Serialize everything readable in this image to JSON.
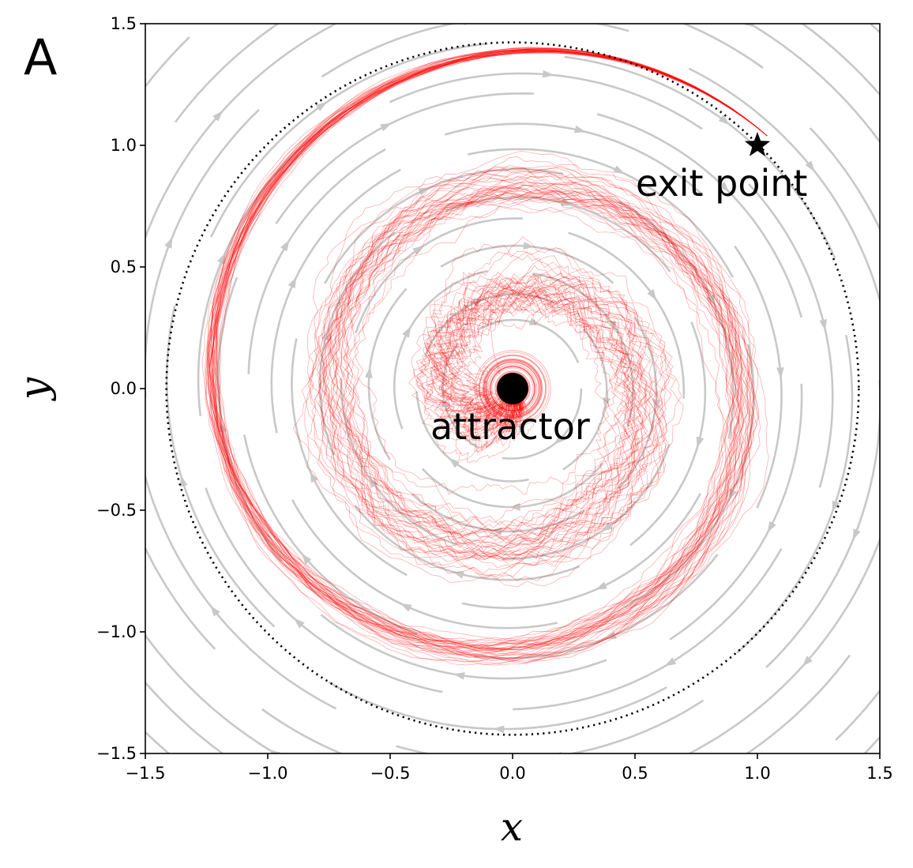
{
  "chart_data": {
    "type": "scatter",
    "panel_label": "A",
    "xlabel": "x",
    "ylabel": "y",
    "xlim": [
      -1.5,
      1.5
    ],
    "ylim": [
      -1.5,
      1.5
    ],
    "xticks": [
      -1.5,
      -1.0,
      -0.5,
      0.0,
      0.5,
      1.0,
      1.5
    ],
    "yticks": [
      -1.5,
      -1.0,
      -0.5,
      0.0,
      0.5,
      1.0,
      1.5
    ],
    "xtick_labels": [
      "−1.5",
      "−1.0",
      "−0.5",
      "0.0",
      "0.5",
      "1.0",
      "1.5"
    ],
    "ytick_labels": [
      "−1.5",
      "−1.0",
      "−0.5",
      "0.0",
      "0.5",
      "1.0",
      "1.5"
    ],
    "grid": false,
    "boundary_circle": {
      "center": [
        0,
        0
      ],
      "radius": 1.414,
      "style": "dotted",
      "color": "#000000"
    },
    "attractor": {
      "x": 0.0,
      "y": 0.0,
      "label": "attractor",
      "marker": "circle",
      "color": "#000000"
    },
    "exit_point": {
      "x": 1.0,
      "y": 1.0,
      "label": "exit point",
      "marker": "star",
      "color": "#000000"
    },
    "trajectories": {
      "color": "#ff0000",
      "description_count": 40,
      "path": "clockwise spiral from attractor outward to exit point, ~2.75 turns"
    },
    "streamlines": {
      "color": "#c8c8c8",
      "direction": "clockwise",
      "rotation": "spiral"
    }
  }
}
